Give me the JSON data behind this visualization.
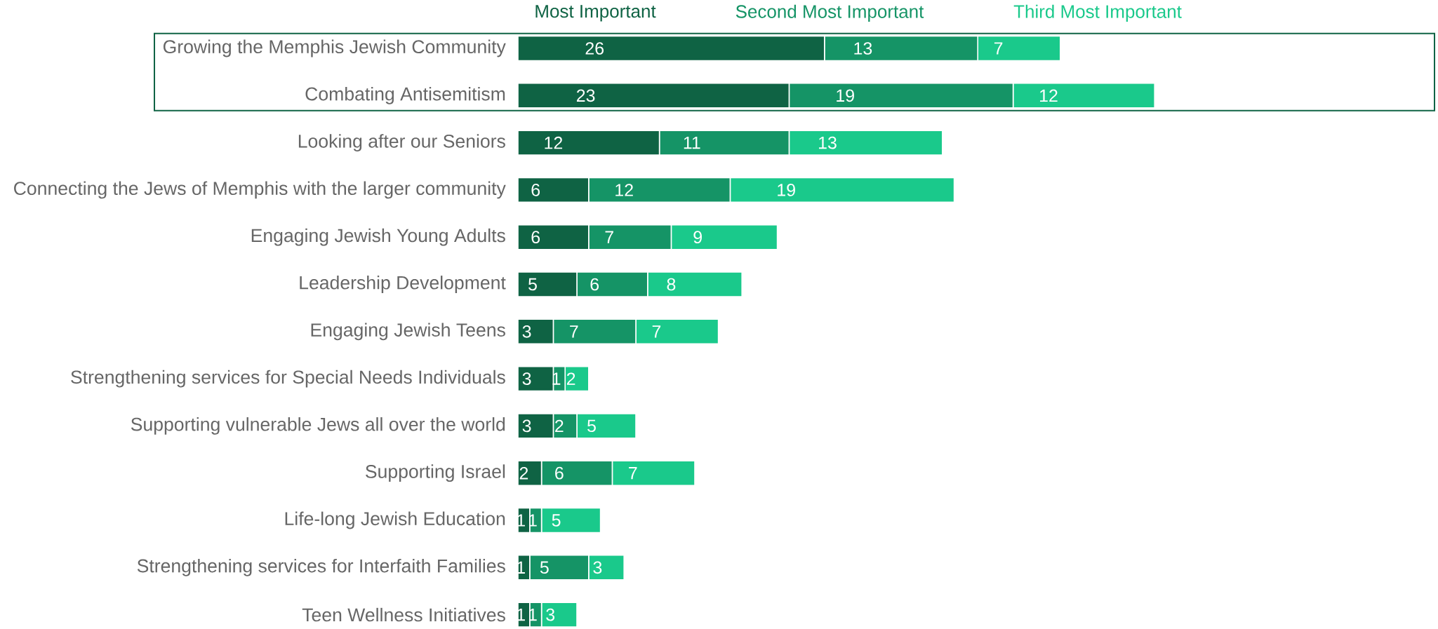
{
  "chart_data": {
    "type": "bar",
    "orientation": "horizontal",
    "stacked": true,
    "data_labels": true,
    "legend": "top",
    "categories": [
      "Growing the Memphis Jewish Community",
      "Combating Antisemitism",
      "Looking after our Seniors",
      "Connecting the Jews of Memphis with the larger community",
      "Engaging Jewish Young Adults",
      "Leadership Development",
      "Engaging Jewish Teens",
      "Strengthening services for Special Needs Individuals",
      "Supporting vulnerable Jews all over the world",
      "Supporting Israel",
      "Life-long Jewish Education",
      "Strengthening services for Interfaith Families",
      "Teen Wellness Initiatives"
    ],
    "series": [
      {
        "name": "Most Important",
        "color": "#0f6344",
        "values": [
          26,
          23,
          12,
          6,
          6,
          5,
          3,
          3,
          3,
          2,
          1,
          1,
          1
        ]
      },
      {
        "name": "Second Most Important",
        "color": "#159466",
        "values": [
          13,
          19,
          11,
          12,
          7,
          6,
          7,
          1,
          2,
          6,
          1,
          5,
          1
        ]
      },
      {
        "name": "Third Most Important",
        "color": "#1ac98b",
        "values": [
          7,
          12,
          13,
          19,
          9,
          8,
          7,
          2,
          5,
          7,
          5,
          3,
          3
        ]
      }
    ]
  }
}
